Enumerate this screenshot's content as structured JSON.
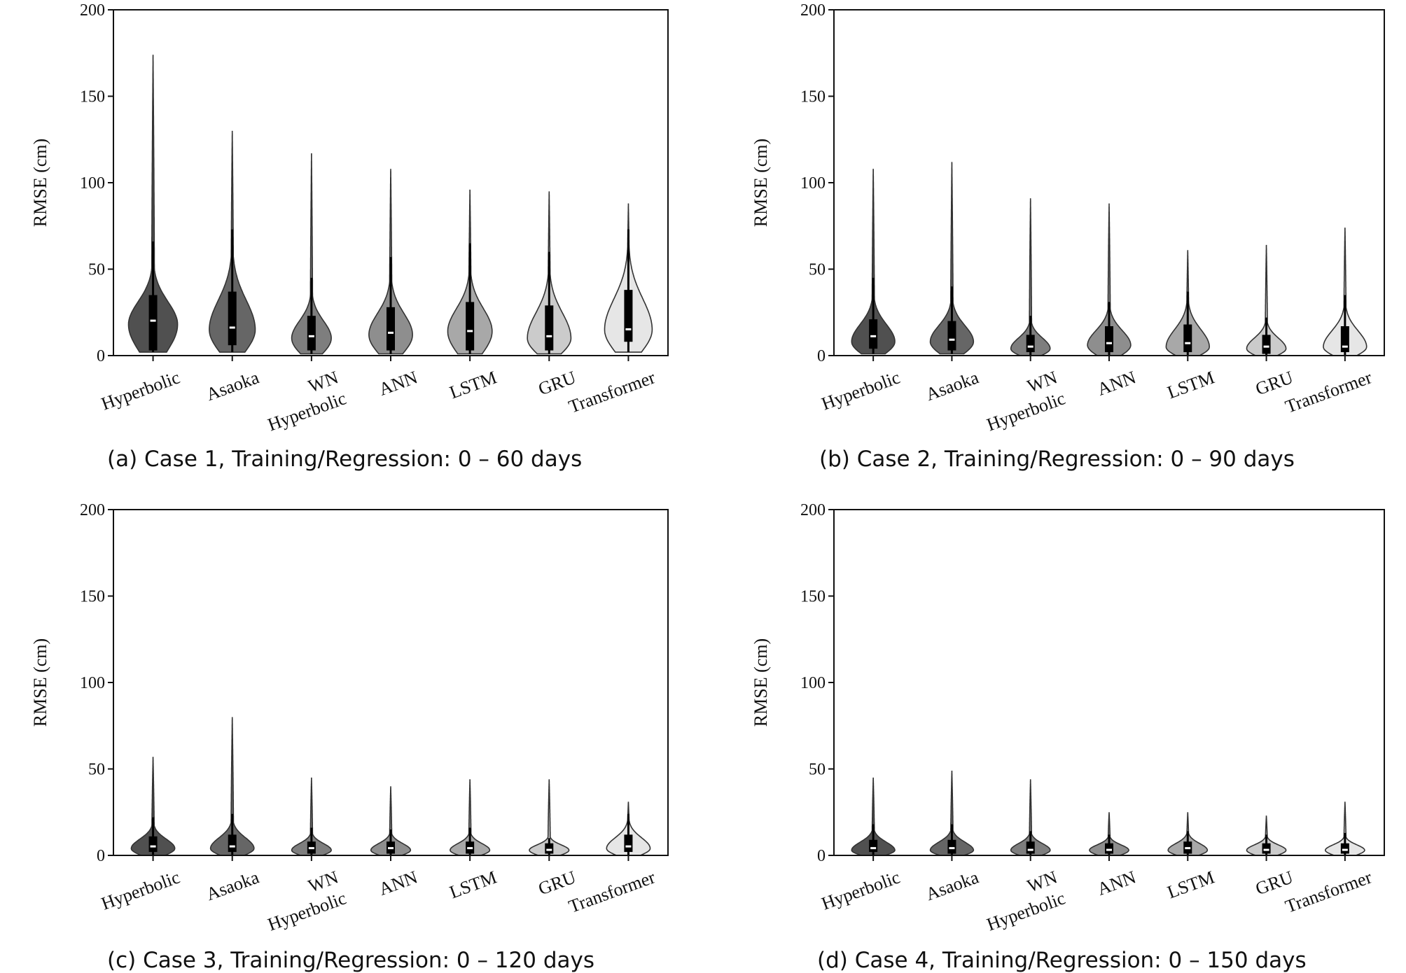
{
  "chart_data": [
    {
      "type": "violin",
      "caption": "(a) Case 1, Training/Regression: 0 – 60 days",
      "ylabel": "RMSE (cm)",
      "ylim": [
        0,
        200
      ],
      "yticks": [
        0,
        50,
        100,
        150,
        200
      ],
      "categories": [
        [
          "Hyperbolic"
        ],
        [
          "Asaoka"
        ],
        [
          "WN",
          "Hyperbolic"
        ],
        [
          "ANN"
        ],
        [
          "LSTM"
        ],
        [
          "GRU"
        ],
        [
          "Transformer"
        ]
      ],
      "series": [
        {
          "fill": "#505050",
          "min": 2,
          "q1": 3,
          "median": 20,
          "q3": 35,
          "max": 174,
          "whisker_high": 66,
          "max_half_width": 0.62,
          "mode": 18
        },
        {
          "fill": "#666666",
          "min": 2,
          "q1": 6,
          "median": 16,
          "q3": 37,
          "max": 130,
          "whisker_high": 73,
          "max_half_width": 0.58,
          "mode": 15
        },
        {
          "fill": "#7e7e7e",
          "min": 1,
          "q1": 3,
          "median": 11,
          "q3": 23,
          "max": 117,
          "whisker_high": 45,
          "max_half_width": 0.5,
          "mode": 10
        },
        {
          "fill": "#8e8e8e",
          "min": 1,
          "q1": 3,
          "median": 13,
          "q3": 28,
          "max": 108,
          "whisker_high": 57,
          "max_half_width": 0.55,
          "mode": 12
        },
        {
          "fill": "#a8a8a8",
          "min": 1,
          "q1": 3,
          "median": 14,
          "q3": 31,
          "max": 96,
          "whisker_high": 65,
          "max_half_width": 0.56,
          "mode": 14
        },
        {
          "fill": "#cbcbcb",
          "min": 1,
          "q1": 3,
          "median": 11,
          "q3": 29,
          "max": 95,
          "whisker_high": 60,
          "max_half_width": 0.55,
          "mode": 10
        },
        {
          "fill": "#e6e6e6",
          "min": 2,
          "q1": 8,
          "median": 15,
          "q3": 38,
          "max": 88,
          "whisker_high": 73,
          "max_half_width": 0.6,
          "mode": 15
        }
      ]
    },
    {
      "type": "violin",
      "caption": "(b) Case 2, Training/Regression: 0 – 90 days",
      "ylabel": "RMSE (cm)",
      "ylim": [
        0,
        200
      ],
      "yticks": [
        0,
        50,
        100,
        150,
        200
      ],
      "categories": [
        [
          "Hyperbolic"
        ],
        [
          "Asaoka"
        ],
        [
          "WN",
          "Hyperbolic"
        ],
        [
          "ANN"
        ],
        [
          "LSTM"
        ],
        [
          "GRU"
        ],
        [
          "Transformer"
        ]
      ],
      "series": [
        {
          "fill": "#505050",
          "min": 1,
          "q1": 4,
          "median": 11,
          "q3": 21,
          "max": 108,
          "whisker_high": 45,
          "max_half_width": 0.55,
          "mode": 8
        },
        {
          "fill": "#666666",
          "min": 1,
          "q1": 3,
          "median": 9,
          "q3": 20,
          "max": 112,
          "whisker_high": 40,
          "max_half_width": 0.55,
          "mode": 8
        },
        {
          "fill": "#7e7e7e",
          "min": 0,
          "q1": 2,
          "median": 5,
          "q3": 12,
          "max": 91,
          "whisker_high": 23,
          "max_half_width": 0.5,
          "mode": 4
        },
        {
          "fill": "#8e8e8e",
          "min": 0,
          "q1": 2,
          "median": 7,
          "q3": 17,
          "max": 88,
          "whisker_high": 31,
          "max_half_width": 0.55,
          "mode": 6
        },
        {
          "fill": "#a8a8a8",
          "min": 0,
          "q1": 2,
          "median": 7,
          "q3": 18,
          "max": 61,
          "whisker_high": 37,
          "max_half_width": 0.55,
          "mode": 5
        },
        {
          "fill": "#cbcbcb",
          "min": 0,
          "q1": 1,
          "median": 5,
          "q3": 12,
          "max": 64,
          "whisker_high": 22,
          "max_half_width": 0.5,
          "mode": 4
        },
        {
          "fill": "#e6e6e6",
          "min": 0,
          "q1": 2,
          "median": 5,
          "q3": 17,
          "max": 74,
          "whisker_high": 35,
          "max_half_width": 0.55,
          "mode": 5
        }
      ]
    },
    {
      "type": "violin",
      "caption": "(c) Case 3, Training/Regression: 0 – 120 days",
      "ylabel": "RMSE (cm)",
      "ylim": [
        0,
        200
      ],
      "yticks": [
        0,
        50,
        100,
        150,
        200
      ],
      "categories": [
        [
          "Hyperbolic"
        ],
        [
          "Asaoka"
        ],
        [
          "WN",
          "Hyperbolic"
        ],
        [
          "ANN"
        ],
        [
          "LSTM"
        ],
        [
          "GRU"
        ],
        [
          "Transformer"
        ]
      ],
      "series": [
        {
          "fill": "#505050",
          "min": 0,
          "q1": 2,
          "median": 5,
          "q3": 11,
          "max": 57,
          "whisker_high": 22,
          "max_half_width": 0.55,
          "mode": 4
        },
        {
          "fill": "#666666",
          "min": 0,
          "q1": 2,
          "median": 5,
          "q3": 12,
          "max": 80,
          "whisker_high": 24,
          "max_half_width": 0.55,
          "mode": 4
        },
        {
          "fill": "#7e7e7e",
          "min": 0,
          "q1": 1,
          "median": 4,
          "q3": 8,
          "max": 45,
          "whisker_high": 16,
          "max_half_width": 0.5,
          "mode": 3
        },
        {
          "fill": "#8e8e8e",
          "min": 0,
          "q1": 1,
          "median": 4,
          "q3": 8,
          "max": 40,
          "whisker_high": 15,
          "max_half_width": 0.5,
          "mode": 3
        },
        {
          "fill": "#a8a8a8",
          "min": 0,
          "q1": 1,
          "median": 4,
          "q3": 8,
          "max": 44,
          "whisker_high": 16,
          "max_half_width": 0.5,
          "mode": 3
        },
        {
          "fill": "#cbcbcb",
          "min": 0,
          "q1": 1,
          "median": 3,
          "q3": 7,
          "max": 44,
          "whisker_high": 10,
          "max_half_width": 0.5,
          "mode": 3
        },
        {
          "fill": "#e6e6e6",
          "min": 0,
          "q1": 2,
          "median": 5,
          "q3": 12,
          "max": 31,
          "whisker_high": 24,
          "max_half_width": 0.55,
          "mode": 4
        }
      ]
    },
    {
      "type": "violin",
      "caption": "(d) Case 4, Training/Regression: 0 – 150 days",
      "ylabel": "RMSE (cm)",
      "ylim": [
        0,
        200
      ],
      "yticks": [
        0,
        50,
        100,
        150,
        200
      ],
      "categories": [
        [
          "Hyperbolic"
        ],
        [
          "Asaoka"
        ],
        [
          "WN",
          "Hyperbolic"
        ],
        [
          "ANN"
        ],
        [
          "LSTM"
        ],
        [
          "GRU"
        ],
        [
          "Transformer"
        ]
      ],
      "series": [
        {
          "fill": "#505050",
          "min": 0,
          "q1": 2,
          "median": 4,
          "q3": 9,
          "max": 45,
          "whisker_high": 18,
          "max_half_width": 0.55,
          "mode": 3
        },
        {
          "fill": "#666666",
          "min": 0,
          "q1": 1,
          "median": 4,
          "q3": 9,
          "max": 49,
          "whisker_high": 18,
          "max_half_width": 0.55,
          "mode": 3
        },
        {
          "fill": "#7e7e7e",
          "min": 0,
          "q1": 1,
          "median": 3,
          "q3": 8,
          "max": 44,
          "whisker_high": 14,
          "max_half_width": 0.5,
          "mode": 3
        },
        {
          "fill": "#8e8e8e",
          "min": 0,
          "q1": 1,
          "median": 3,
          "q3": 7,
          "max": 25,
          "whisker_high": 12,
          "max_half_width": 0.5,
          "mode": 3
        },
        {
          "fill": "#a8a8a8",
          "min": 0,
          "q1": 1,
          "median": 4,
          "q3": 8,
          "max": 25,
          "whisker_high": 14,
          "max_half_width": 0.5,
          "mode": 3
        },
        {
          "fill": "#cbcbcb",
          "min": 0,
          "q1": 1,
          "median": 3,
          "q3": 7,
          "max": 23,
          "whisker_high": 12,
          "max_half_width": 0.5,
          "mode": 3
        },
        {
          "fill": "#e6e6e6",
          "min": 0,
          "q1": 1,
          "median": 3,
          "q3": 7,
          "max": 31,
          "whisker_high": 13,
          "max_half_width": 0.5,
          "mode": 3
        }
      ]
    }
  ]
}
